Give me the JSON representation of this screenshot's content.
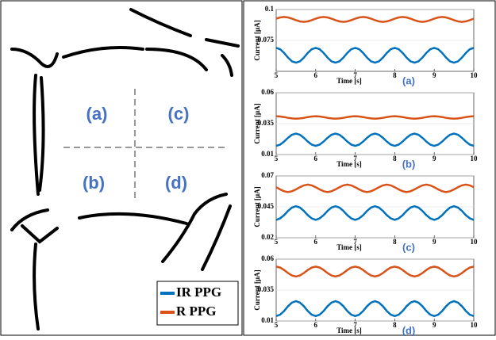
{
  "regions": [
    "(a)",
    "(b)",
    "(c)",
    "(d)"
  ],
  "chart_data": [
    {
      "type": "line",
      "caption": "(a)",
      "xlabel": "Time [s]",
      "ylabel": "Current [μA]",
      "xlim": [
        5,
        10
      ],
      "xticks": [
        5,
        6,
        7,
        8,
        9,
        10
      ],
      "ylim": [
        0.05,
        0.1
      ],
      "yticks": [
        0.075,
        0.1
      ],
      "x": [
        5,
        5.1,
        5.2,
        5.3,
        5.4,
        5.5,
        5.6,
        5.7,
        5.8,
        5.9,
        6,
        6.1,
        6.2,
        6.3,
        6.4,
        6.5,
        6.6,
        6.7,
        6.8,
        6.9,
        7,
        7.1,
        7.2,
        7.3,
        7.4,
        7.5,
        7.6,
        7.7,
        7.8,
        7.9,
        8,
        8.1,
        8.2,
        8.3,
        8.4,
        8.5,
        8.6,
        8.7,
        8.8,
        8.9,
        9,
        9.1,
        9.2,
        9.3,
        9.4,
        9.5,
        9.6,
        9.7,
        9.8,
        9.9,
        10
      ],
      "series": [
        {
          "name": "IR PPG",
          "color": "#0072bd",
          "values": [
            0.069,
            0.0679,
            0.0649,
            0.0611,
            0.0581,
            0.057,
            0.0581,
            0.0611,
            0.0649,
            0.0679,
            0.069,
            0.0679,
            0.0649,
            0.0611,
            0.0581,
            0.057,
            0.0581,
            0.0611,
            0.0649,
            0.0679,
            0.069,
            0.0679,
            0.0649,
            0.0611,
            0.0581,
            0.057,
            0.0581,
            0.0611,
            0.0649,
            0.0679,
            0.069,
            0.0679,
            0.0649,
            0.0611,
            0.0581,
            0.057,
            0.0581,
            0.0611,
            0.0649,
            0.0679,
            0.069,
            0.0679,
            0.0649,
            0.0611,
            0.0581,
            0.057,
            0.0581,
            0.0611,
            0.0649,
            0.0679,
            0.069
          ]
        },
        {
          "name": "R PPG",
          "color": "#d95319",
          "values": [
            0.0926,
            0.0936,
            0.094,
            0.0936,
            0.0926,
            0.0914,
            0.0904,
            0.09,
            0.0904,
            0.0914,
            0.0926,
            0.0936,
            0.094,
            0.0936,
            0.0926,
            0.0914,
            0.0904,
            0.09,
            0.0904,
            0.0914,
            0.0926,
            0.0936,
            0.094,
            0.0936,
            0.0926,
            0.0914,
            0.0904,
            0.09,
            0.0904,
            0.0914,
            0.0926,
            0.0936,
            0.094,
            0.0936,
            0.0926,
            0.0914,
            0.0904,
            0.09,
            0.0904,
            0.0914,
            0.0926,
            0.0936,
            0.094,
            0.0936,
            0.0926,
            0.0914,
            0.0904,
            0.09,
            0.0904,
            0.0914,
            0.0926
          ]
        }
      ]
    },
    {
      "type": "line",
      "caption": "(b)",
      "xlabel": "Time [s]",
      "ylabel": "Current [μA]",
      "xlim": [
        5,
        10
      ],
      "xticks": [
        5,
        6,
        7,
        8,
        9,
        10
      ],
      "ylim": [
        0.01,
        0.06
      ],
      "yticks": [
        0.01,
        0.035,
        0.06
      ],
      "x": [
        5,
        5.1,
        5.2,
        5.3,
        5.4,
        5.5,
        5.6,
        5.7,
        5.8,
        5.9,
        6,
        6.1,
        6.2,
        6.3,
        6.4,
        6.5,
        6.6,
        6.7,
        6.8,
        6.9,
        7,
        7.1,
        7.2,
        7.3,
        7.4,
        7.5,
        7.6,
        7.7,
        7.8,
        7.9,
        8,
        8.1,
        8.2,
        8.3,
        8.4,
        8.5,
        8.6,
        8.7,
        8.8,
        8.9,
        9,
        9.1,
        9.2,
        9.3,
        9.4,
        9.5,
        9.6,
        9.7,
        9.8,
        9.9,
        10
      ],
      "series": [
        {
          "name": "IR PPG",
          "color": "#0072bd",
          "values": [
            0.017,
            0.018,
            0.0205,
            0.0235,
            0.026,
            0.027,
            0.026,
            0.0235,
            0.0205,
            0.018,
            0.017,
            0.018,
            0.0205,
            0.0235,
            0.026,
            0.027,
            0.026,
            0.0235,
            0.0205,
            0.018,
            0.017,
            0.018,
            0.0205,
            0.0235,
            0.026,
            0.027,
            0.026,
            0.0235,
            0.0205,
            0.018,
            0.017,
            0.018,
            0.0205,
            0.0235,
            0.026,
            0.027,
            0.026,
            0.0235,
            0.0205,
            0.018,
            0.017,
            0.018,
            0.0205,
            0.0235,
            0.026,
            0.027,
            0.026,
            0.0235,
            0.0205,
            0.018,
            0.017
          ]
        },
        {
          "name": "R PPG",
          "color": "#d95319",
          "values": [
            0.041,
            0.0408,
            0.0403,
            0.0397,
            0.0392,
            0.039,
            0.0392,
            0.0397,
            0.0403,
            0.0408,
            0.041,
            0.0408,
            0.0403,
            0.0397,
            0.0392,
            0.039,
            0.0392,
            0.0397,
            0.0403,
            0.0408,
            0.041,
            0.0408,
            0.0403,
            0.0397,
            0.0392,
            0.039,
            0.0392,
            0.0397,
            0.0403,
            0.0408,
            0.041,
            0.0408,
            0.0403,
            0.0397,
            0.0392,
            0.039,
            0.0392,
            0.0397,
            0.0403,
            0.0408,
            0.041,
            0.0408,
            0.0403,
            0.0397,
            0.0392,
            0.039,
            0.0392,
            0.0397,
            0.0403,
            0.0408,
            0.041
          ]
        }
      ]
    },
    {
      "type": "line",
      "caption": "(c)",
      "xlabel": "Time [s]",
      "ylabel": "Current [μA]",
      "xlim": [
        5,
        10
      ],
      "xticks": [
        5,
        6,
        7,
        8,
        9,
        10
      ],
      "ylim": [
        0.02,
        0.07
      ],
      "yticks": [
        0.02,
        0.045,
        0.07
      ],
      "x": [
        5,
        5.1,
        5.2,
        5.3,
        5.4,
        5.5,
        5.6,
        5.7,
        5.8,
        5.9,
        6,
        6.1,
        6.2,
        6.3,
        6.4,
        6.5,
        6.6,
        6.7,
        6.8,
        6.9,
        7,
        7.1,
        7.2,
        7.3,
        7.4,
        7.5,
        7.6,
        7.7,
        7.8,
        7.9,
        8,
        8.1,
        8.2,
        8.3,
        8.4,
        8.5,
        8.6,
        8.7,
        8.8,
        8.9,
        9,
        9.1,
        9.2,
        9.3,
        9.4,
        9.5,
        9.6,
        9.7,
        9.8,
        9.9,
        10
      ],
      "series": [
        {
          "name": "IR PPG",
          "color": "#0072bd",
          "values": [
            0.0345,
            0.0357,
            0.0383,
            0.0417,
            0.0444,
            0.0455,
            0.0444,
            0.0417,
            0.0383,
            0.0357,
            0.0345,
            0.0357,
            0.0383,
            0.0417,
            0.0444,
            0.0455,
            0.0444,
            0.0417,
            0.0383,
            0.0357,
            0.0345,
            0.0357,
            0.0383,
            0.0417,
            0.0444,
            0.0455,
            0.0444,
            0.0417,
            0.0383,
            0.0357,
            0.0345,
            0.0357,
            0.0383,
            0.0417,
            0.0444,
            0.0455,
            0.0444,
            0.0417,
            0.0383,
            0.0357,
            0.0345,
            0.0357,
            0.0383,
            0.0417,
            0.0444,
            0.0455,
            0.0444,
            0.0417,
            0.0383,
            0.0357,
            0.0345
          ]
        },
        {
          "name": "R PPG",
          "color": "#d95319",
          "values": [
            0.0609,
            0.0591,
            0.0576,
            0.057,
            0.0576,
            0.0591,
            0.0609,
            0.0624,
            0.063,
            0.0624,
            0.0609,
            0.0591,
            0.0576,
            0.057,
            0.0576,
            0.0591,
            0.0609,
            0.0624,
            0.063,
            0.0624,
            0.0609,
            0.0591,
            0.0576,
            0.057,
            0.0576,
            0.0591,
            0.0609,
            0.0624,
            0.063,
            0.0624,
            0.0609,
            0.0591,
            0.0576,
            0.057,
            0.0576,
            0.0591,
            0.0609,
            0.0624,
            0.063,
            0.0624,
            0.0609,
            0.0591,
            0.0576,
            0.057,
            0.0576,
            0.0591,
            0.0609,
            0.0624,
            0.063,
            0.0624,
            0.0609
          ]
        }
      ]
    },
    {
      "type": "line",
      "caption": "(d)",
      "xlabel": "Time [s]",
      "ylabel": "Current [μA]",
      "xlim": [
        5,
        10
      ],
      "xticks": [
        5,
        6,
        7,
        8,
        9,
        10
      ],
      "ylim": [
        0.01,
        0.06
      ],
      "yticks": [
        0.01,
        0.035,
        0.06
      ],
      "x": [
        5,
        5.1,
        5.2,
        5.3,
        5.4,
        5.5,
        5.6,
        5.7,
        5.8,
        5.9,
        6,
        6.1,
        6.2,
        6.3,
        6.4,
        6.5,
        6.6,
        6.7,
        6.8,
        6.9,
        7,
        7.1,
        7.2,
        7.3,
        7.4,
        7.5,
        7.6,
        7.7,
        7.8,
        7.9,
        8,
        8.1,
        8.2,
        8.3,
        8.4,
        8.5,
        8.6,
        8.7,
        8.8,
        8.9,
        9,
        9.1,
        9.2,
        9.3,
        9.4,
        9.5,
        9.6,
        9.7,
        9.8,
        9.9,
        10
      ],
      "series": [
        {
          "name": "IR PPG",
          "color": "#0072bd",
          "values": [
            0.014,
            0.0151,
            0.0181,
            0.0219,
            0.0249,
            0.026,
            0.0249,
            0.0219,
            0.0181,
            0.0151,
            0.014,
            0.0151,
            0.0181,
            0.0219,
            0.0249,
            0.026,
            0.0249,
            0.0219,
            0.0181,
            0.0151,
            0.014,
            0.0151,
            0.0181,
            0.0219,
            0.0249,
            0.026,
            0.0249,
            0.0219,
            0.0181,
            0.0151,
            0.014,
            0.0151,
            0.0181,
            0.0219,
            0.0249,
            0.026,
            0.0249,
            0.0219,
            0.0181,
            0.0151,
            0.014,
            0.0151,
            0.0181,
            0.0219,
            0.0249,
            0.026,
            0.0249,
            0.0219,
            0.0181,
            0.0151,
            0.014
          ]
        },
        {
          "name": "R PPG",
          "color": "#d95319",
          "values": [
            0.054,
            0.0532,
            0.0512,
            0.0488,
            0.0468,
            0.046,
            0.0468,
            0.0488,
            0.0512,
            0.0532,
            0.054,
            0.0532,
            0.0512,
            0.0488,
            0.0468,
            0.046,
            0.0468,
            0.0488,
            0.0512,
            0.0532,
            0.054,
            0.0532,
            0.0512,
            0.0488,
            0.0468,
            0.046,
            0.0468,
            0.0488,
            0.0512,
            0.0532,
            0.054,
            0.0532,
            0.0512,
            0.0488,
            0.0468,
            0.046,
            0.0468,
            0.0488,
            0.0512,
            0.0532,
            0.054,
            0.0532,
            0.0512,
            0.0488,
            0.0468,
            0.046,
            0.0468,
            0.0488,
            0.0512,
            0.0532,
            0.054
          ]
        }
      ]
    }
  ]
}
